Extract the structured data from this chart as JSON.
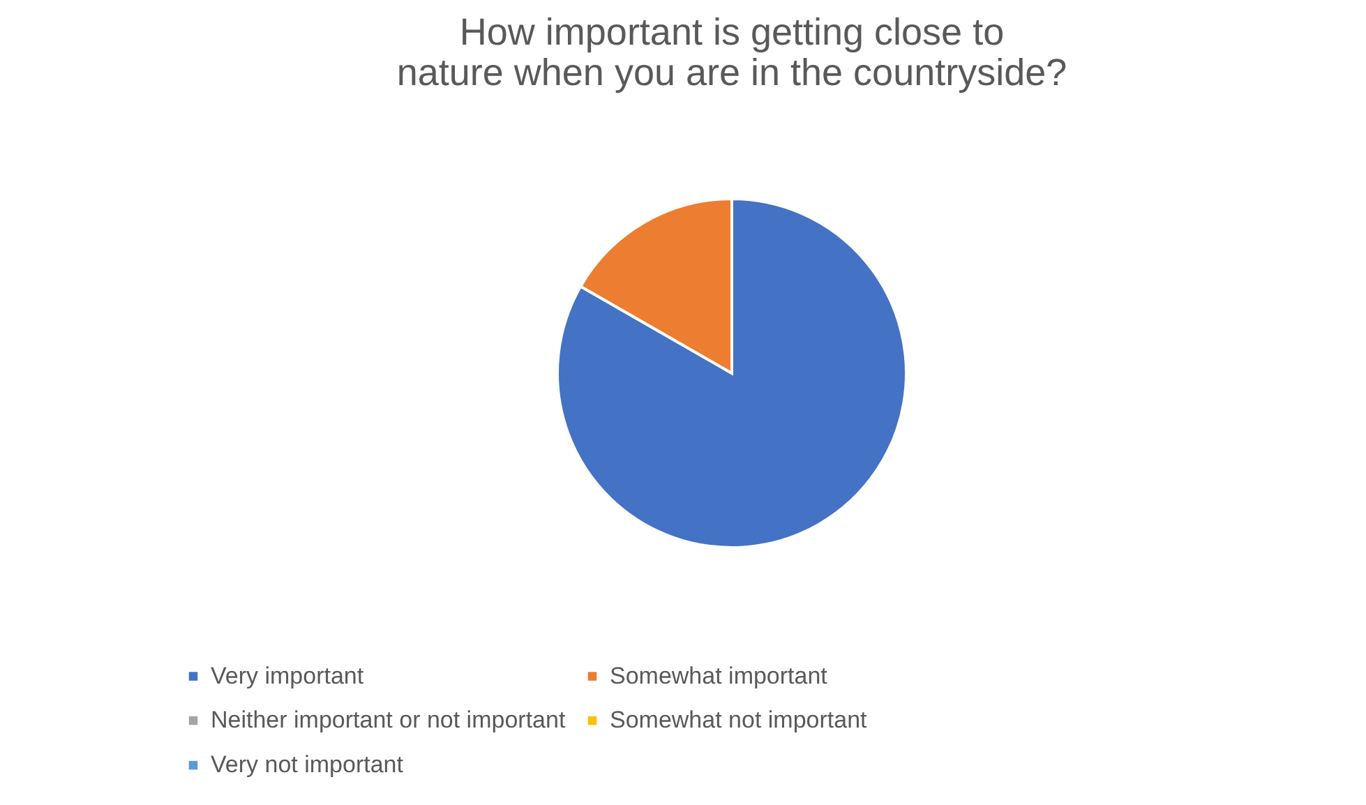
{
  "chart_data": {
    "type": "pie",
    "title": "How important is getting close to nature when you are in the countryside?",
    "categories": [
      "Very important",
      "Somewhat important",
      "Neither important or not important",
      "Somewhat not important",
      "Very not important"
    ],
    "values": [
      83.3,
      16.7,
      0,
      0,
      0
    ],
    "colors": [
      "#4472c4",
      "#ed7d31",
      "#a5a5a5",
      "#ffc000",
      "#5b9bd5"
    ],
    "legend": "bottom"
  }
}
